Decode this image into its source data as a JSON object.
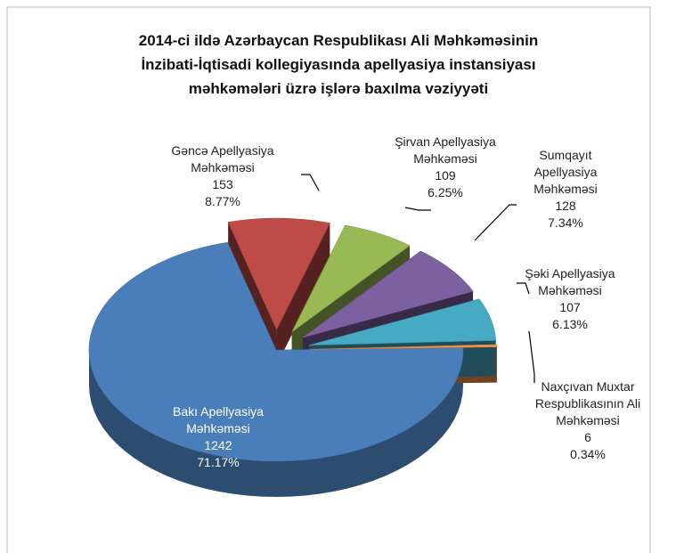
{
  "chart_data": {
    "type": "pie",
    "title": [
      "2014-ci ildə Azərbaycan Respublikası Ali Məhkəməsinin",
      "İnzibati-İqtisadi  kollegiyasında  apellyasiya instansiyası",
      "məhkəmələri üzrə işlərə baxılma vəziyyəti"
    ],
    "categories": [
      "Gəncə  Apellyasiya Məhkəməsi",
      "Şirvan  Apellyasiya Məhkəməsi",
      "Sumqayıt Apellyasiya Məhkəməsi",
      "Şəki Apellyasiya Məhkəməsi",
      "Naxçıvan Muxtar Respublikasının Ali Məhkəməsi",
      "Bakı Apellyasiya Məhkəməsi"
    ],
    "values": [
      153,
      109,
      128,
      107,
      6,
      1242
    ],
    "percent_labels": [
      "8.77%",
      "6.25%",
      "7.34%",
      "6.13%",
      "0.34%",
      "71.17%"
    ],
    "colors": [
      "#be4b48",
      "#98b954",
      "#7d60a0",
      "#46aac5",
      "#f79646",
      "#4a7ebb"
    ]
  }
}
